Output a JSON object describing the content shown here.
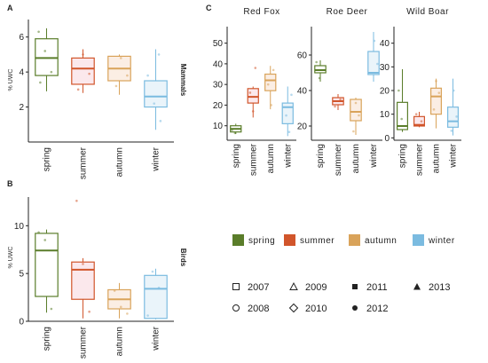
{
  "colors": {
    "spring": "#5a7d2a",
    "summer": "#d1552b",
    "autumn": "#d9a35a",
    "winter": "#7bbbe0",
    "spring_fill": "#ffffff",
    "summer_fill": "#fbe8ec",
    "autumn_fill": "#fbeee4",
    "winter_fill": "#eaf4fa",
    "axis": "#222222"
  },
  "chart_data": [
    {
      "id": "A",
      "panel_label": "A",
      "type": "boxplot",
      "ylabel": "% UWC",
      "side_label": "Mammals",
      "categories": [
        "spring",
        "summer",
        "autumn",
        "winter"
      ],
      "ylim": [
        0,
        7
      ],
      "yticks": [
        2,
        4,
        6
      ],
      "boxes": [
        {
          "cat": "spring",
          "q1": 3.8,
          "median": 4.8,
          "q3": 5.9,
          "whisker_low": 2.9,
          "whisker_high": 6.5
        },
        {
          "cat": "summer",
          "q1": 3.3,
          "median": 4.2,
          "q3": 4.8,
          "whisker_low": 2.8,
          "whisker_high": 5.3
        },
        {
          "cat": "autumn",
          "q1": 3.5,
          "median": 4.2,
          "q3": 4.9,
          "whisker_low": 2.7,
          "whisker_high": 5.0
        },
        {
          "cat": "winter",
          "q1": 2.0,
          "median": 2.6,
          "q3": 3.5,
          "whisker_low": 0.7,
          "whisker_high": 5.3
        }
      ],
      "points": [
        {
          "cat": "spring",
          "y": 6.3
        },
        {
          "cat": "spring",
          "y": 5.2
        },
        {
          "cat": "spring",
          "y": 4.0
        },
        {
          "cat": "spring",
          "y": 3.4
        },
        {
          "cat": "summer",
          "y": 5.0
        },
        {
          "cat": "summer",
          "y": 3.9
        },
        {
          "cat": "summer",
          "y": 3.0
        },
        {
          "cat": "autumn",
          "y": 4.8
        },
        {
          "cat": "autumn",
          "y": 3.8
        },
        {
          "cat": "autumn",
          "y": 3.2
        },
        {
          "cat": "winter",
          "y": 5.0
        },
        {
          "cat": "winter",
          "y": 3.8
        },
        {
          "cat": "winter",
          "y": 2.2
        },
        {
          "cat": "winter",
          "y": 1.2
        }
      ]
    },
    {
      "id": "B",
      "panel_label": "B",
      "type": "boxplot",
      "ylabel": "% UWC",
      "side_label": "Birds",
      "categories": [
        "spring",
        "summer",
        "autumn",
        "winter"
      ],
      "ylim": [
        0,
        13
      ],
      "yticks": [
        0,
        5,
        10
      ],
      "boxes": [
        {
          "cat": "spring",
          "q1": 2.6,
          "median": 7.4,
          "q3": 9.2,
          "whisker_low": 0.9,
          "whisker_high": 9.6
        },
        {
          "cat": "summer",
          "q1": 2.3,
          "median": 5.4,
          "q3": 6.2,
          "whisker_low": 0.3,
          "whisker_high": 6.6
        },
        {
          "cat": "autumn",
          "q1": 1.3,
          "median": 2.3,
          "q3": 3.3,
          "whisker_low": 0.3,
          "whisker_high": 4.0
        },
        {
          "cat": "winter",
          "q1": 0.3,
          "median": 3.4,
          "q3": 4.8,
          "whisker_low": 0.2,
          "whisker_high": 5.5
        }
      ],
      "points": [
        {
          "cat": "spring",
          "y": 9.3
        },
        {
          "cat": "spring",
          "y": 8.5
        },
        {
          "cat": "spring",
          "y": 1.3
        },
        {
          "cat": "summer",
          "y": 12.6
        },
        {
          "cat": "summer",
          "y": 6.0
        },
        {
          "cat": "summer",
          "y": 1.0
        },
        {
          "cat": "autumn",
          "y": 3.2
        },
        {
          "cat": "autumn",
          "y": 1.5
        },
        {
          "cat": "autumn",
          "y": 0.8
        },
        {
          "cat": "winter",
          "y": 5.2
        },
        {
          "cat": "winter",
          "y": 3.5
        },
        {
          "cat": "winter",
          "y": 0.6
        }
      ]
    },
    {
      "id": "C1",
      "panel_label": "C",
      "type": "boxplot",
      "title": "Red Fox",
      "categories": [
        "spring",
        "summer",
        "autumn",
        "winter"
      ],
      "ylim": [
        3,
        58
      ],
      "yticks": [
        10,
        20,
        30,
        40,
        50
      ],
      "boxes": [
        {
          "cat": "spring",
          "q1": 7.0,
          "median": 8.5,
          "q3": 10.0,
          "whisker_low": 6.0,
          "whisker_high": 11.0
        },
        {
          "cat": "summer",
          "q1": 21.0,
          "median": 24.0,
          "q3": 28.0,
          "whisker_low": 14.0,
          "whisker_high": 29.0
        },
        {
          "cat": "autumn",
          "q1": 27.0,
          "median": 32.0,
          "q3": 35.0,
          "whisker_low": 18.0,
          "whisker_high": 39.0
        },
        {
          "cat": "winter",
          "q1": 11.0,
          "median": 19.0,
          "q3": 21.0,
          "whisker_low": 5.0,
          "whisker_high": 29.0
        }
      ],
      "points": [
        {
          "cat": "spring",
          "y": 8.0
        },
        {
          "cat": "spring",
          "y": 6.5
        },
        {
          "cat": "summer",
          "y": 38.0
        },
        {
          "cat": "summer",
          "y": 26.0
        },
        {
          "cat": "summer",
          "y": 17.0
        },
        {
          "cat": "autumn",
          "y": 37.0
        },
        {
          "cat": "autumn",
          "y": 30.0
        },
        {
          "cat": "autumn",
          "y": 20.0
        },
        {
          "cat": "winter",
          "y": 25.0
        },
        {
          "cat": "winter",
          "y": 15.0
        },
        {
          "cat": "winter",
          "y": 7.0
        }
      ]
    },
    {
      "id": "C2",
      "type": "boxplot",
      "title": "Roe Deer",
      "categories": [
        "spring",
        "summer",
        "autumn",
        "winter"
      ],
      "ylim": [
        12,
        76
      ],
      "yticks": [
        20,
        40,
        60
      ],
      "boxes": [
        {
          "cat": "spring",
          "q1": 50.0,
          "median": 51.5,
          "q3": 54.0,
          "whisker_low": 45.0,
          "whisker_high": 57.0
        },
        {
          "cat": "summer",
          "q1": 32.0,
          "median": 34.0,
          "q3": 36.0,
          "whisker_low": 29.0,
          "whisker_high": 38.0
        },
        {
          "cat": "autumn",
          "q1": 23.0,
          "median": 28.0,
          "q3": 35.0,
          "whisker_low": 15.0,
          "whisker_high": 36.0
        },
        {
          "cat": "winter",
          "q1": 49.0,
          "median": 50.0,
          "q3": 62.0,
          "whisker_low": 45.0,
          "whisker_high": 73.0
        }
      ],
      "points": [
        {
          "cat": "spring",
          "y": 56.0
        },
        {
          "cat": "spring",
          "y": 47.0
        },
        {
          "cat": "summer",
          "y": 35.0
        },
        {
          "cat": "summer",
          "y": 31.0
        },
        {
          "cat": "autumn",
          "y": 33.0
        },
        {
          "cat": "autumn",
          "y": 26.0
        },
        {
          "cat": "autumn",
          "y": 17.0
        },
        {
          "cat": "winter",
          "y": 68.0
        },
        {
          "cat": "winter",
          "y": 55.0
        }
      ]
    },
    {
      "id": "C3",
      "type": "boxplot",
      "title": "Wild Boar",
      "categories": [
        "spring",
        "summer",
        "autumn",
        "winter"
      ],
      "ylim": [
        -1,
        47
      ],
      "yticks": [
        0,
        10,
        20,
        30,
        40
      ],
      "boxes": [
        {
          "cat": "spring",
          "q1": 3.5,
          "median": 5.0,
          "q3": 15.0,
          "whisker_low": 2.5,
          "whisker_high": 29.0
        },
        {
          "cat": "summer",
          "q1": 5.0,
          "median": 5.5,
          "q3": 9.0,
          "whisker_low": 4.5,
          "whisker_high": 11.0
        },
        {
          "cat": "autumn",
          "q1": 10.0,
          "median": 17.5,
          "q3": 21.0,
          "whisker_low": 4.0,
          "whisker_high": 25.0
        },
        {
          "cat": "winter",
          "q1": 4.5,
          "median": 7.0,
          "q3": 13.0,
          "whisker_low": 1.0,
          "whisker_high": 25.0
        }
      ],
      "points": [
        {
          "cat": "spring",
          "y": 20.0
        },
        {
          "cat": "spring",
          "y": 8.0
        },
        {
          "cat": "summer",
          "y": 7.0
        },
        {
          "cat": "summer",
          "y": 10.0
        },
        {
          "cat": "autumn",
          "y": 24.0
        },
        {
          "cat": "autumn",
          "y": 19.0
        },
        {
          "cat": "autumn",
          "y": 12.0
        },
        {
          "cat": "winter",
          "y": 20.0
        },
        {
          "cat": "winter",
          "y": 9.0
        },
        {
          "cat": "winter",
          "y": 3.0
        }
      ]
    }
  ],
  "legend_seasons": [
    {
      "label": "spring",
      "color_key": "spring"
    },
    {
      "label": "summer",
      "color_key": "summer"
    },
    {
      "label": "autumn",
      "color_key": "autumn"
    },
    {
      "label": "winter",
      "color_key": "winter"
    }
  ],
  "legend_years": [
    {
      "label": "2007",
      "shape": "square"
    },
    {
      "label": "2009",
      "shape": "triangle-open"
    },
    {
      "label": "2011",
      "shape": "square-filled"
    },
    {
      "label": "2013",
      "shape": "triangle-filled"
    },
    {
      "label": "2008",
      "shape": "circle-open"
    },
    {
      "label": "2010",
      "shape": "diamond-open"
    },
    {
      "label": "2012",
      "shape": "circle-filled"
    }
  ]
}
